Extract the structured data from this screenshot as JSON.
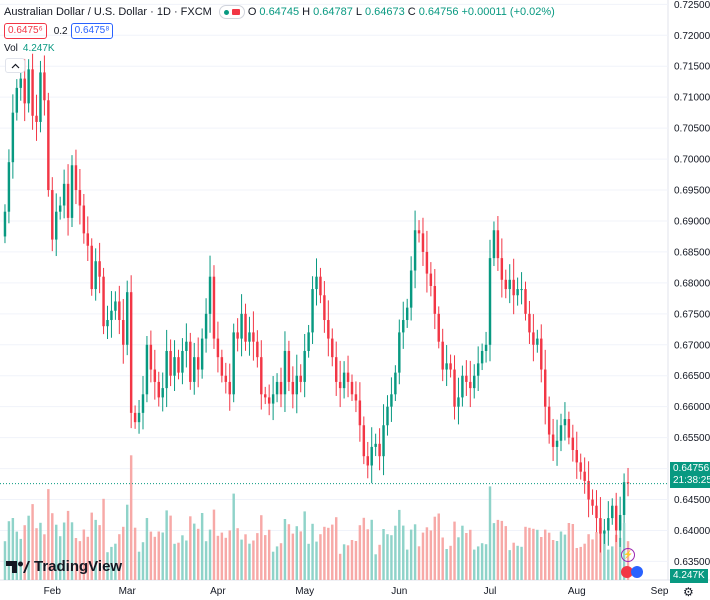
{
  "header": {
    "symbol_title": "Australian Dollar / U.S. Dollar · 1D · FXCM",
    "ohlc": [
      {
        "label": "O",
        "value": "0.64745"
      },
      {
        "label": "H",
        "value": "0.64787"
      },
      {
        "label": "L",
        "value": "0.64673"
      },
      {
        "label": "C",
        "value": "0.64756"
      }
    ],
    "change": "+0.00011 (+0.02%)",
    "bid": "0.6475⁶",
    "spread": "0.2",
    "ask": "0.6475⁸",
    "volume_label": "Vol",
    "volume_value": "4.247K"
  },
  "branding": {
    "logo_text": "TradingView"
  },
  "price_tag": {
    "price": "0.64756",
    "countdown": "21:38:25"
  },
  "volume_tag": "4.247K",
  "colors": {
    "up": "#089981",
    "down": "#f23645",
    "up_vol": "#8fd3c9",
    "down_vol": "#f7a9a7"
  },
  "icons": [
    "collapse-icon",
    "lightning-icon",
    "flag-icon",
    "gear-icon",
    "tradingview-logo-icon"
  ],
  "chart_data": {
    "type": "candlestick",
    "ylim": [
      0.632,
      0.7257
    ],
    "y_ticks": [
      "0.72500",
      "0.72000",
      "0.71500",
      "0.71000",
      "0.70500",
      "0.70000",
      "0.69500",
      "0.69000",
      "0.68500",
      "0.68000",
      "0.67500",
      "0.67000",
      "0.66500",
      "0.66000",
      "0.65500",
      "0.65000",
      "0.64500",
      "0.64000",
      "0.63500"
    ],
    "x_labels": [
      "Feb",
      "Mar",
      "Apr",
      "May",
      "Jun",
      "Jul",
      "Aug",
      "Sep"
    ],
    "x_label_bars": [
      12,
      31,
      54,
      76,
      100,
      123,
      145,
      166
    ],
    "last_price": 0.64756,
    "closes": [
      0.6915,
      0.6995,
      0.7075,
      0.7115,
      0.713,
      0.709,
      0.7145,
      0.707,
      0.706,
      0.714,
      0.7095,
      0.695,
      0.687,
      0.6915,
      0.6925,
      0.696,
      0.6905,
      0.699,
      0.695,
      0.6925,
      0.688,
      0.686,
      0.679,
      0.6835,
      0.681,
      0.673,
      0.674,
      0.6755,
      0.677,
      0.674,
      0.67,
      0.6785,
      0.659,
      0.6575,
      0.659,
      0.662,
      0.67,
      0.666,
      0.664,
      0.6615,
      0.663,
      0.669,
      0.665,
      0.668,
      0.6655,
      0.669,
      0.6705,
      0.664,
      0.668,
      0.666,
      0.671,
      0.675,
      0.681,
      0.671,
      0.668,
      0.665,
      0.664,
      0.662,
      0.672,
      0.671,
      0.675,
      0.6705,
      0.672,
      0.6705,
      0.668,
      0.662,
      0.6615,
      0.6605,
      0.662,
      0.664,
      0.662,
      0.669,
      0.664,
      0.662,
      0.665,
      0.664,
      0.669,
      0.672,
      0.679,
      0.681,
      0.678,
      0.674,
      0.671,
      0.668,
      0.664,
      0.663,
      0.6655,
      0.664,
      0.662,
      0.661,
      0.657,
      0.652,
      0.6505,
      0.6535,
      0.654,
      0.652,
      0.657,
      0.66,
      0.662,
      0.6655,
      0.672,
      0.674,
      0.676,
      0.682,
      0.6885,
      0.688,
      0.685,
      0.6815,
      0.6795,
      0.675,
      0.6705,
      0.666,
      0.667,
      0.666,
      0.66,
      0.6615,
      0.665,
      0.664,
      0.663,
      0.665,
      0.667,
      0.669,
      0.67,
      0.684,
      0.6885,
      0.684,
      0.6805,
      0.679,
      0.6805,
      0.678,
      0.679,
      0.679,
      0.675,
      0.672,
      0.67,
      0.671,
      0.666,
      0.66,
      0.6555,
      0.6535,
      0.6545,
      0.657,
      0.658,
      0.655,
      0.653,
      0.651,
      0.6495,
      0.648,
      0.645,
      0.644,
      0.642,
      0.6395,
      0.64,
      0.642,
      0.644,
      0.64,
      0.6425,
      0.6478,
      0.6476
    ]
  }
}
